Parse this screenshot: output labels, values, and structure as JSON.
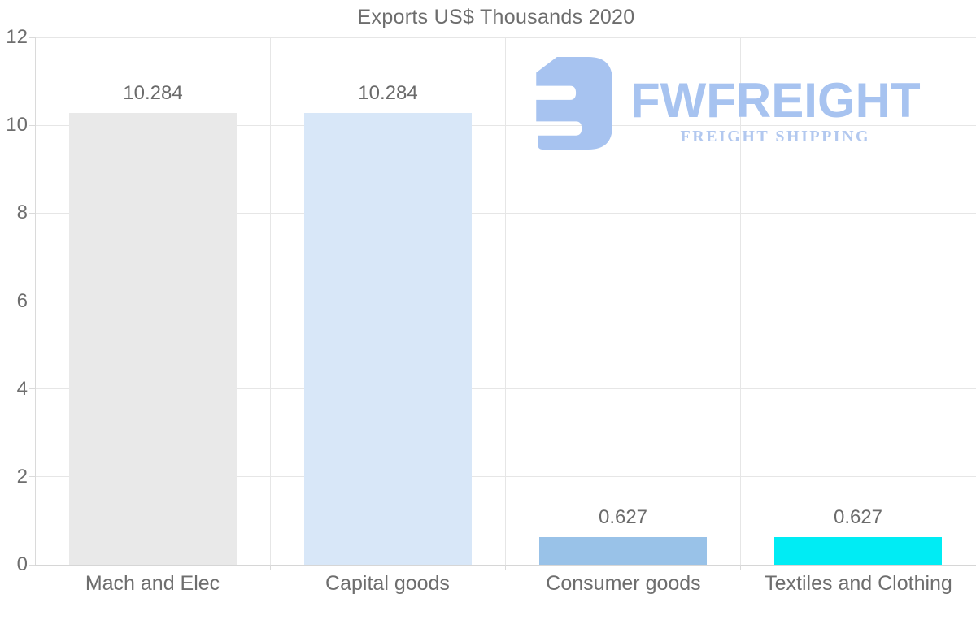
{
  "chart_data": {
    "type": "bar",
    "title": "Exports US$ Thousands 2020",
    "categories": [
      "Mach and Elec",
      "Capital goods",
      "Consumer goods",
      "Textiles and Clothing"
    ],
    "values": [
      10.284,
      10.284,
      0.627,
      0.627
    ],
    "value_labels": [
      "10.284",
      "10.284",
      "0.627",
      "0.627"
    ],
    "bar_colors": [
      "#e9e9e9",
      "#d8e7f8",
      "#99c2e8",
      "#00ecf4"
    ],
    "ylim": [
      0,
      12
    ],
    "yticks": [
      0,
      2,
      4,
      6,
      8,
      10,
      12
    ],
    "ytick_labels": [
      "0",
      "2",
      "4",
      "6",
      "8",
      "10",
      "12"
    ],
    "grid": true,
    "legend": "none",
    "xlabel": "",
    "ylabel": ""
  },
  "watermark": {
    "brand": "FWFREIGHT",
    "tagline": "FREIGHT SHIPPING",
    "logo_color": "#a7c3f0",
    "brand_color": "#a7c3f0",
    "tagline_color": "#b2c8ef"
  },
  "style": {
    "grid_color": "#e6e6e6",
    "axis_color": "#d8d8d8",
    "text_color": "#6e6e6e",
    "background": "#ffffff"
  }
}
